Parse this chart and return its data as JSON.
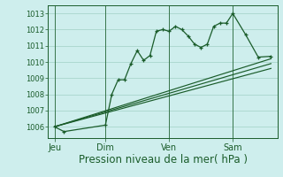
{
  "background_color": "#ceeeed",
  "grid_color": "#a8d5cc",
  "line_color": "#1a5c2a",
  "xlabel": "Pression niveau de la mer( hPa )",
  "xlabel_fontsize": 8.5,
  "ylim": [
    1005.3,
    1013.5
  ],
  "yticks": [
    1006,
    1007,
    1008,
    1009,
    1010,
    1011,
    1012,
    1013
  ],
  "day_labels": [
    "Jeu",
    "Dim",
    "Ven",
    "Sam"
  ],
  "day_positions": [
    0,
    16,
    36,
    56
  ],
  "series1_x": [
    0,
    3,
    16,
    18,
    20,
    22,
    24,
    26,
    28,
    30,
    32,
    34,
    36,
    38,
    40,
    42,
    44,
    46,
    48,
    50,
    52,
    54,
    56,
    60,
    64,
    68
  ],
  "series1_y": [
    1006.0,
    1005.7,
    1006.1,
    1008.0,
    1008.9,
    1008.9,
    1009.9,
    1010.7,
    1010.1,
    1010.4,
    1011.9,
    1012.0,
    1011.9,
    1012.2,
    1012.0,
    1011.6,
    1011.1,
    1010.9,
    1011.1,
    1012.2,
    1012.4,
    1012.4,
    1013.0,
    1011.7,
    1010.3,
    1010.35
  ],
  "series2_x": [
    0,
    68
  ],
  "series2_y": [
    1006.0,
    1009.9
  ],
  "series3_x": [
    0,
    68
  ],
  "series3_y": [
    1006.0,
    1009.6
  ],
  "series4_x": [
    0,
    68
  ],
  "series4_y": [
    1006.0,
    1010.2
  ],
  "xlim": [
    -2,
    70
  ]
}
